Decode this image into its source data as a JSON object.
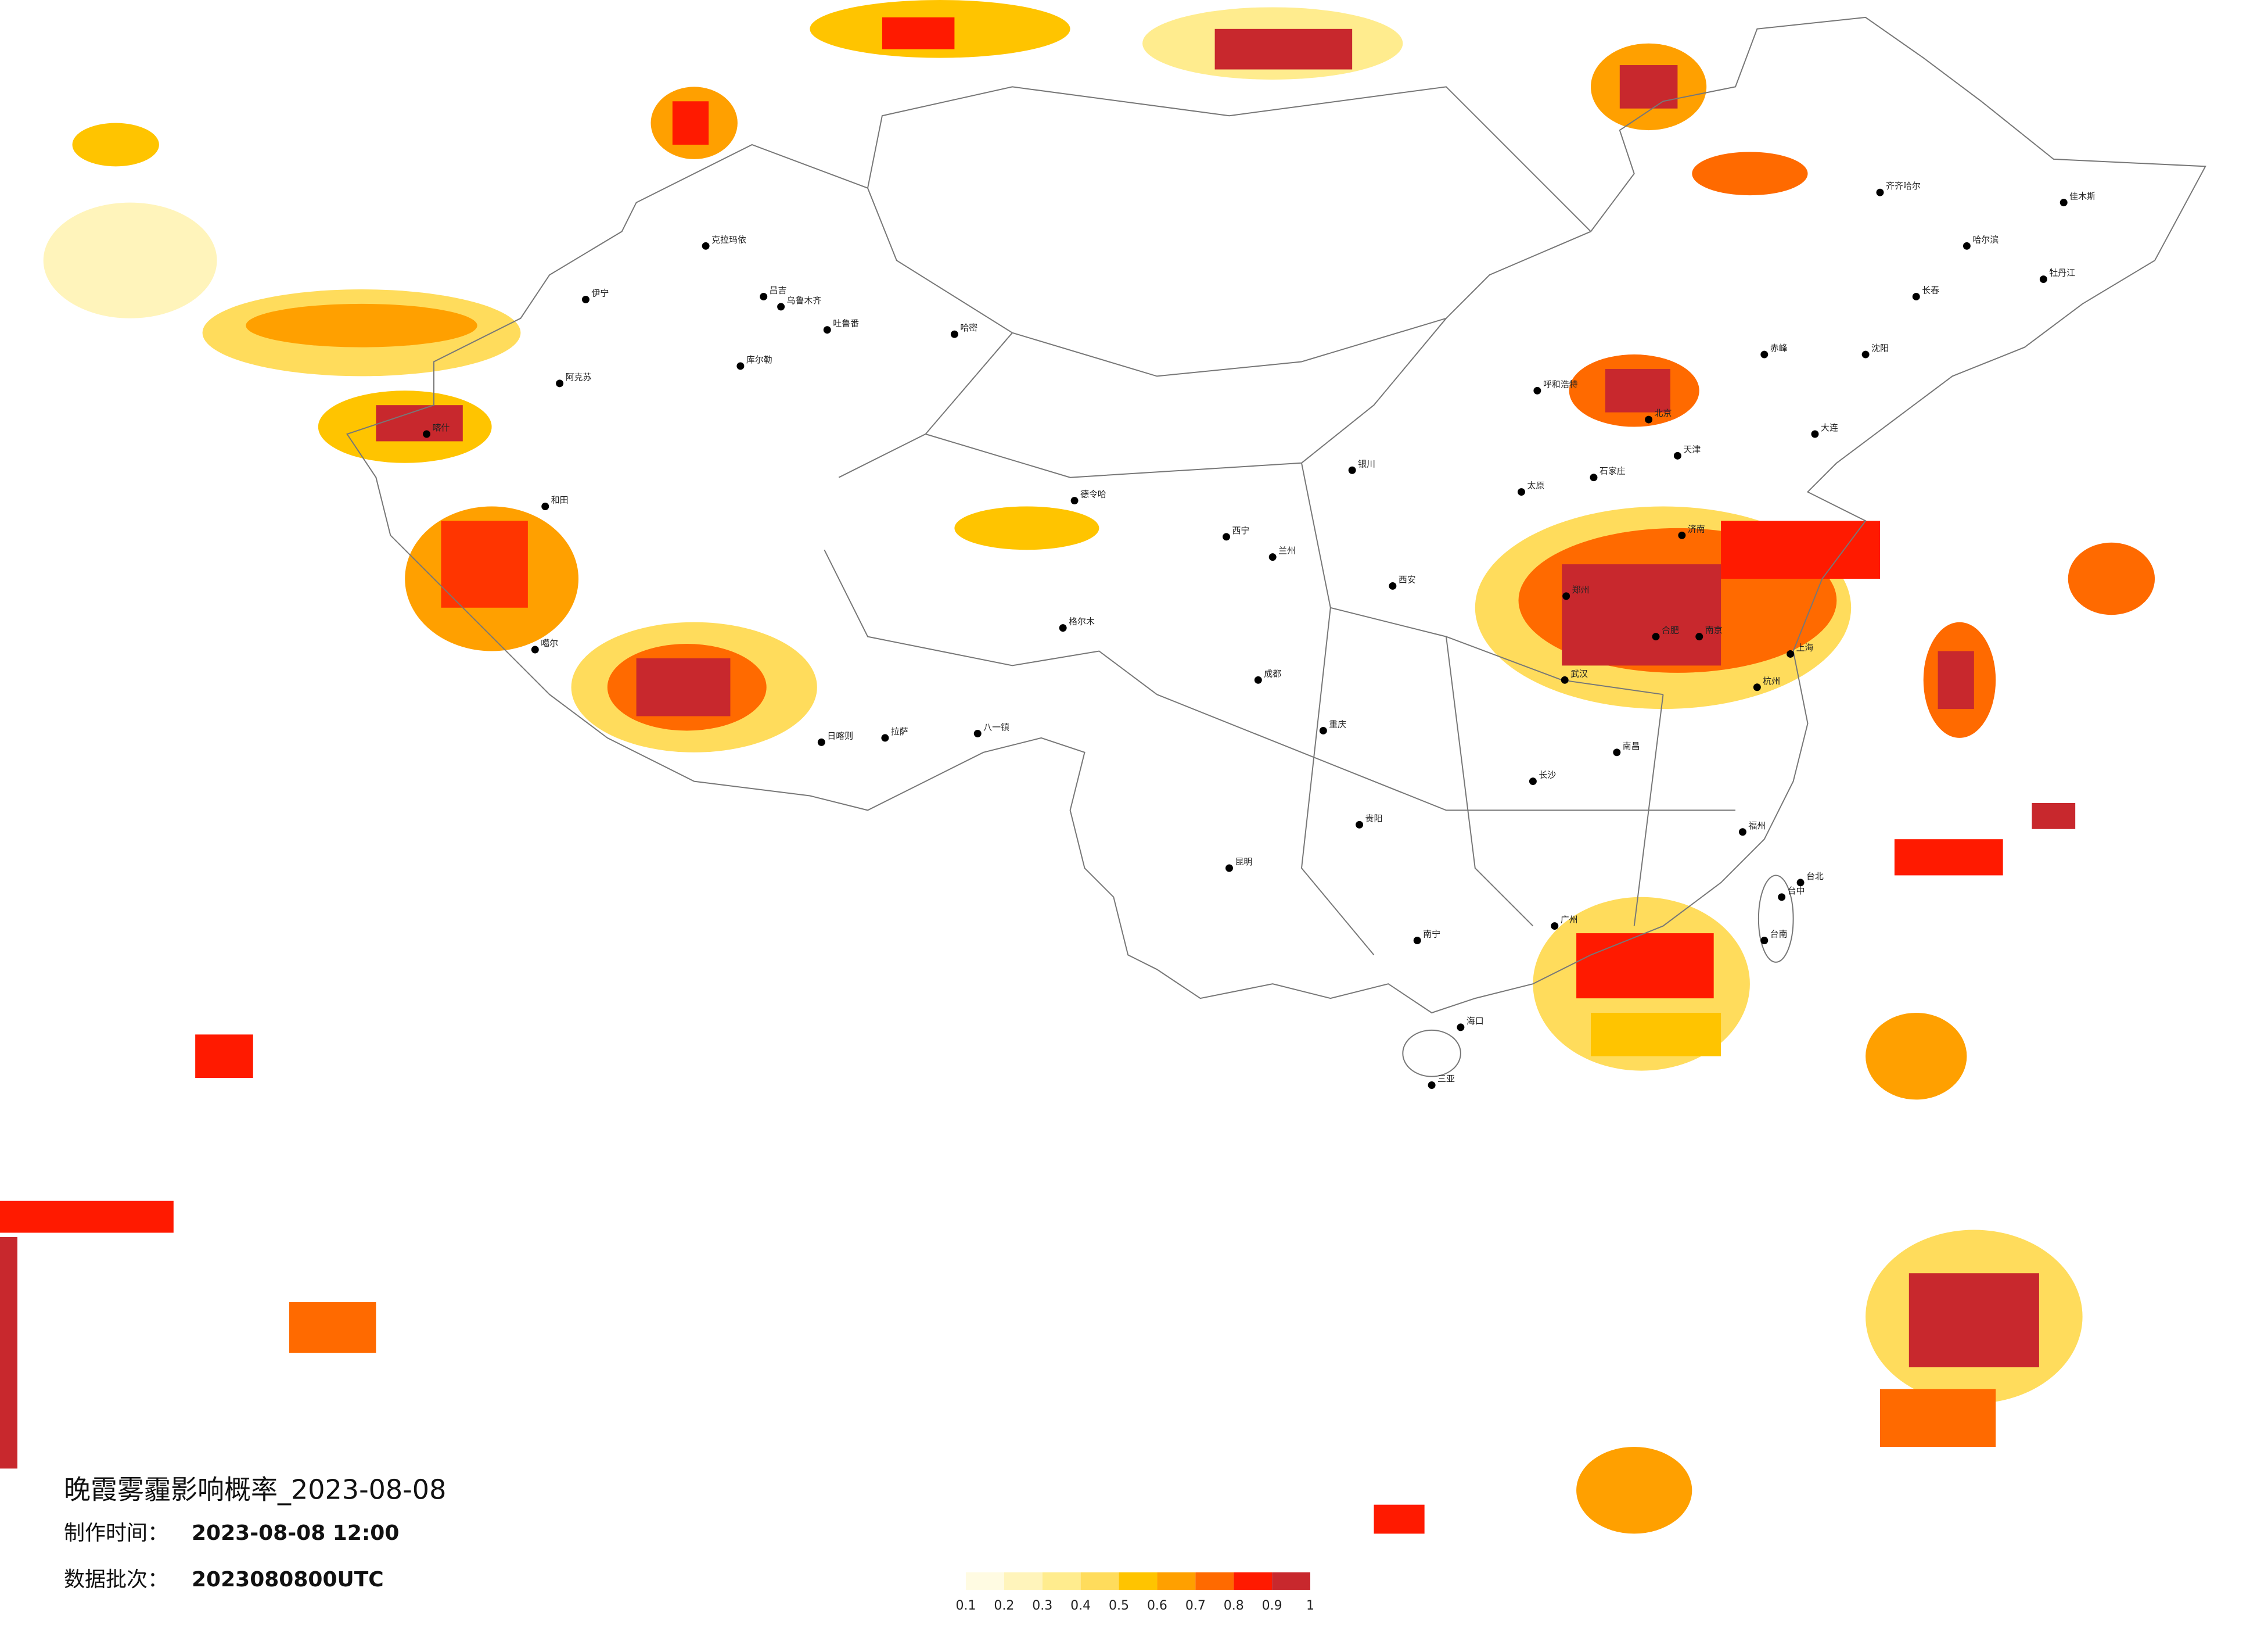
{
  "title": "晚霞雾霾影响概率_2023-08-08",
  "made_label": "制作时间：",
  "made_time": "2023-08-08 12:00",
  "batch_label": "数据批次：",
  "batch": "2023080800UTC",
  "legend": {
    "colors": [
      "#fffbe2",
      "#fff4bb",
      "#ffec8e",
      "#ffdc5c",
      "#ffc400",
      "#ffa000",
      "#ff6a00",
      "#ff1a00",
      "#c8282d"
    ],
    "ticks": [
      0.1,
      0.2,
      0.3,
      0.4,
      0.5,
      0.6,
      0.7,
      0.8,
      0.9,
      1
    ]
  },
  "cities": [
    "克拉玛依",
    "伊宁",
    "昌吉",
    "乌鲁木齐",
    "吐鲁番",
    "哈密",
    "库尔勒",
    "阿克苏",
    "喀什",
    "和田",
    "德令哈",
    "格尔木",
    "噶尔",
    "日喀则",
    "拉萨",
    "八一镇",
    "西宁",
    "兰州",
    "银川",
    "呼和浩特",
    "北京",
    "天津",
    "石家庄",
    "太原",
    "济南",
    "郑州",
    "西安",
    "武汉",
    "合肥",
    "南京",
    "上海",
    "杭州",
    "南昌",
    "长沙",
    "福州",
    "广州",
    "南宁",
    "海口",
    "贵阳",
    "昆明",
    "成都",
    "重庆",
    "哈尔滨",
    "长春",
    "沈阳",
    "大连",
    "台北",
    "台中",
    "台南",
    "三亚",
    "齐齐哈尔",
    "佳木斯",
    "牡丹江",
    "赤峰"
  ]
}
